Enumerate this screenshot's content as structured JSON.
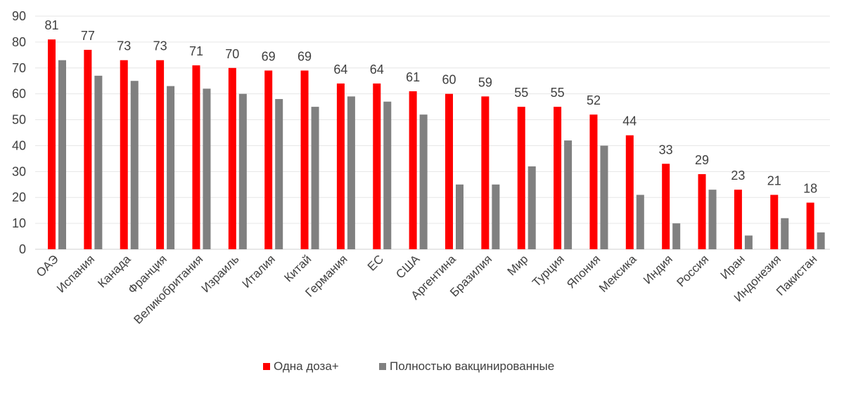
{
  "chart_data": {
    "type": "bar",
    "title": "",
    "xlabel": "",
    "ylabel": "",
    "ylim": [
      0,
      90
    ],
    "yticks": [
      0,
      10,
      20,
      30,
      40,
      50,
      60,
      70,
      80,
      90
    ],
    "grid": true,
    "legend_position": "bottom",
    "categories": [
      "ОАЭ",
      "Испания",
      "Канада",
      "Франция",
      "Великобритания",
      "Израиль",
      "Италия",
      "Китай",
      "Германия",
      "ЕС",
      "США",
      "Аргентина",
      "Бразилия",
      "Мир",
      "Турция",
      "Япония",
      "Мексика",
      "Индия",
      "Россия",
      "Иран",
      "Индонезия",
      "Пакистан"
    ],
    "series": [
      {
        "name": "Одна доза+",
        "color": "#ff0000",
        "values": [
          81,
          77,
          73,
          73,
          71,
          70,
          69,
          69,
          64,
          64,
          61,
          60,
          59,
          55,
          55,
          52,
          44,
          33,
          29,
          23,
          21,
          18
        ],
        "data_labels": true
      },
      {
        "name": "Полностью вакцинированные",
        "color": "#808080",
        "values": [
          73,
          67,
          65,
          63,
          62,
          60,
          58,
          55,
          59,
          57,
          52,
          25,
          25,
          32,
          42,
          40,
          21,
          10,
          23,
          5.3,
          12,
          6.5
        ],
        "data_labels": false
      }
    ]
  }
}
